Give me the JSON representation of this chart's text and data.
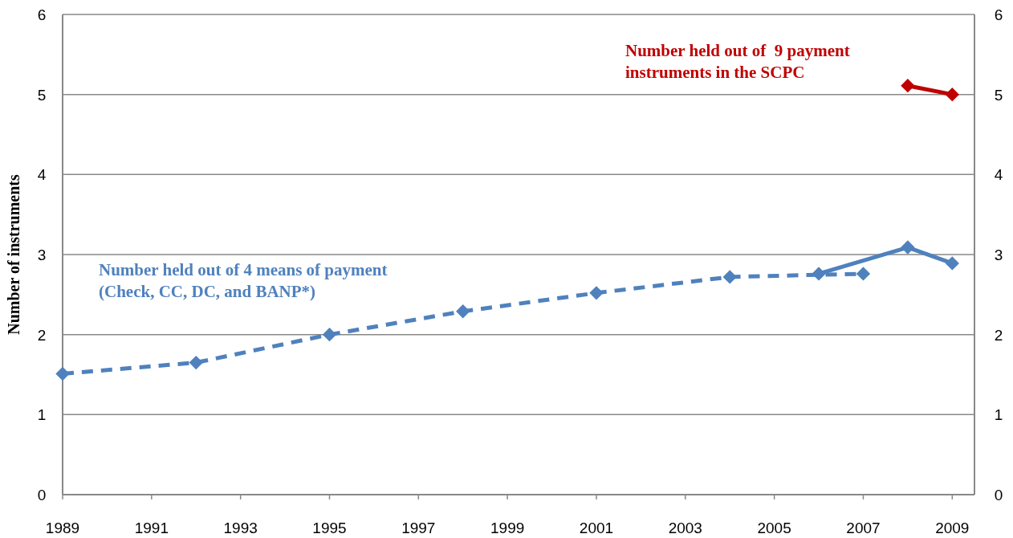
{
  "chart_data": {
    "type": "line",
    "ylabel": "Number of instruments",
    "xlim": [
      1989,
      2009.5
    ],
    "xticks": [
      1989,
      1991,
      1993,
      1995,
      1997,
      1999,
      2001,
      2003,
      2005,
      2007,
      2009
    ],
    "ylim": [
      0,
      6
    ],
    "yticks": [
      0,
      1,
      2,
      3,
      4,
      5,
      6
    ],
    "y2lim": [
      0,
      6
    ],
    "y2ticks": [
      0,
      1,
      2,
      3,
      4,
      5,
      6
    ],
    "grid": "y",
    "marker": "diamond",
    "series": [
      {
        "name": "Number held out of 4 means of payment (Check, CC, DC, and BANP*)",
        "color": "#4f81bd",
        "line_style": "dashed",
        "x": [
          1989,
          1992,
          1995,
          1998,
          2001,
          2004,
          2007
        ],
        "values": [
          1.51,
          1.65,
          2.0,
          2.29,
          2.52,
          2.72,
          2.76
        ]
      },
      {
        "color": "#4f81bd",
        "line_style": "solid",
        "x": [
          2006,
          2008,
          2009
        ],
        "values": [
          2.76,
          3.09,
          2.89
        ]
      },
      {
        "name": "Number held out of  9 payment instruments in the SCPC",
        "color": "#c00000",
        "line_style": "solid",
        "x": [
          2008,
          2009
        ],
        "values": [
          5.11,
          5.0
        ]
      }
    ]
  }
}
